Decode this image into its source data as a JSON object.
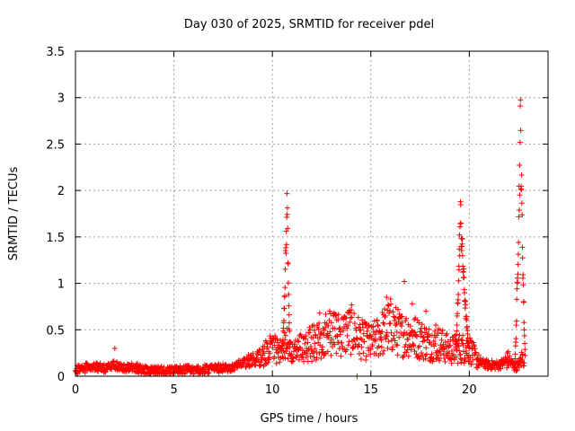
{
  "chart_data": {
    "type": "scatter",
    "title": "Day 030 of 2025, SRMTID for receiver pdel",
    "xlabel": "GPS time / hours",
    "ylabel": "SRMTID / TECUs",
    "xlim": [
      0,
      24
    ],
    "ylim": [
      0,
      3.5
    ],
    "x_ticks": [
      0,
      5,
      10,
      15,
      20
    ],
    "y_ticks": [
      0,
      0.5,
      1,
      1.5,
      2,
      2.5,
      3,
      3.5
    ],
    "x_tick_labels": [
      "0",
      "5",
      "10",
      "15",
      "20"
    ],
    "y_tick_labels": [
      "0",
      "0.5",
      "1",
      "1.5",
      "2",
      "2.5",
      "3",
      "3.5"
    ],
    "grid": true,
    "marker": "+",
    "color": "#ff0000",
    "series": [
      {
        "name": "SRMTID",
        "profile": [
          [
            0.0,
            0.07
          ],
          [
            0.5,
            0.09
          ],
          [
            1.0,
            0.1
          ],
          [
            1.5,
            0.08
          ],
          [
            2.0,
            0.12
          ],
          [
            2.5,
            0.09
          ],
          [
            3.0,
            0.1
          ],
          [
            3.5,
            0.06
          ],
          [
            4.0,
            0.06
          ],
          [
            5.0,
            0.06
          ],
          [
            6.0,
            0.07
          ],
          [
            7.0,
            0.08
          ],
          [
            8.0,
            0.1
          ],
          [
            8.5,
            0.14
          ],
          [
            9.0,
            0.16
          ],
          [
            9.5,
            0.22
          ],
          [
            10.0,
            0.3
          ],
          [
            10.3,
            0.28
          ],
          [
            10.5,
            0.3
          ],
          [
            10.8,
            0.35
          ],
          [
            11.0,
            0.25
          ],
          [
            11.5,
            0.3
          ],
          [
            12.0,
            0.35
          ],
          [
            12.5,
            0.42
          ],
          [
            13.0,
            0.48
          ],
          [
            13.5,
            0.45
          ],
          [
            14.0,
            0.5
          ],
          [
            14.5,
            0.4
          ],
          [
            15.0,
            0.35
          ],
          [
            15.5,
            0.45
          ],
          [
            16.0,
            0.55
          ],
          [
            16.5,
            0.45
          ],
          [
            17.0,
            0.45
          ],
          [
            17.5,
            0.4
          ],
          [
            18.0,
            0.35
          ],
          [
            18.5,
            0.35
          ],
          [
            19.0,
            0.28
          ],
          [
            19.5,
            0.3
          ],
          [
            20.0,
            0.3
          ],
          [
            20.3,
            0.2
          ],
          [
            20.5,
            0.15
          ],
          [
            21.0,
            0.12
          ],
          [
            21.5,
            0.12
          ],
          [
            22.0,
            0.18
          ],
          [
            22.3,
            0.1
          ],
          [
            22.5,
            0.12
          ],
          [
            22.7,
            0.2
          ],
          [
            22.8,
            0.2
          ]
        ],
        "spikes": [
          {
            "x": [
              10.5,
              10.9
            ],
            "peak_x": 10.75,
            "peak_y": 2.05
          },
          {
            "x": [
              19.3,
              20.0
            ],
            "peak_x": 19.55,
            "peak_y": 1.9
          },
          {
            "x": [
              22.3,
              22.85
            ],
            "peak_x": 22.6,
            "peak_y": 3.0
          }
        ],
        "outliers": [
          [
            2.0,
            0.3
          ],
          [
            14.3,
            0.0
          ],
          [
            15.8,
            0.85
          ],
          [
            16.7,
            1.02
          ],
          [
            17.1,
            0.78
          ],
          [
            12.4,
            0.68
          ],
          [
            13.2,
            0.65
          ],
          [
            14.9,
            0.55
          ],
          [
            17.8,
            0.7
          ],
          [
            18.3,
            0.55
          ]
        ]
      }
    ]
  }
}
